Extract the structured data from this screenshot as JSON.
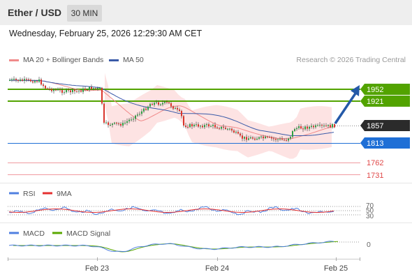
{
  "header": {
    "title": "Ether / USD",
    "timeframe": "30 MIN"
  },
  "datetime": "Wednesday, February 25, 2026 12:29:30 AM CET",
  "legend": {
    "ma20_bb": "MA 20 + Bollinger Bands",
    "ma50": "MA 50",
    "credit": "Research © 2026 Trading Central"
  },
  "levels": {
    "r2": "1952",
    "r1": "1921",
    "current": "1857",
    "s1": "1813",
    "s2": "1762",
    "s3": "1731"
  },
  "rsi": {
    "label": "RSI",
    "ma_label": "9MA",
    "levels": [
      "70",
      "50",
      "30"
    ]
  },
  "macd": {
    "label": "MACD",
    "signal_label": "MACD Signal",
    "zero": "0"
  },
  "xaxis": [
    "Feb 23",
    "Feb 24",
    "Feb 25"
  ],
  "colors": {
    "resistance": "#52a300",
    "support": "#1f6fd6",
    "current": "#2b2b2b",
    "minor": "#e8525a",
    "ma20": "#f08a8a",
    "ma50": "#3a5aa8",
    "bollinger": "#fde3e3",
    "candle_up": "#2ea043",
    "candle_down": "#d9342b",
    "rsi": "#4f7fe0",
    "rsi_ma": "#e53030",
    "macd": "#4f7fe0",
    "macd_signal": "#5aa800",
    "arrow": "#2459a8"
  }
}
